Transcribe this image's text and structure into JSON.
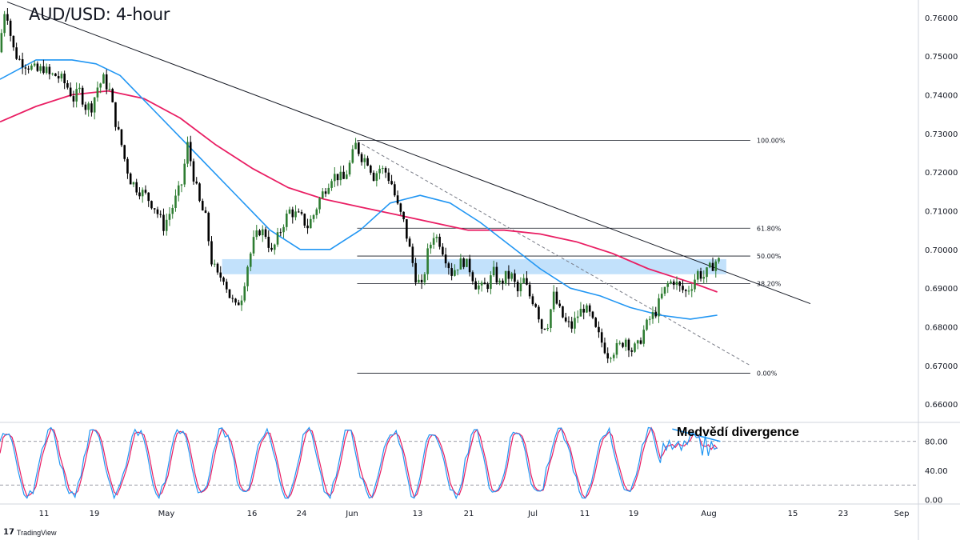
{
  "title": "AUD/USD: 4-hour",
  "branding": "TradingView",
  "chart_data": {
    "type": "candlestick",
    "title": "AUD/USD: 4-hour",
    "price_axis": {
      "ticks": [
        0.76,
        0.75,
        0.74,
        0.73,
        0.72,
        0.71,
        0.7,
        0.69,
        0.68,
        0.67,
        0.66
      ],
      "tick_labels": [
        "0.76000",
        "0.75000",
        "0.74000",
        "0.73000",
        "0.72000",
        "0.71000",
        "0.70000",
        "0.69000",
        "0.68000",
        "0.67000",
        "0.66000"
      ],
      "range": [
        0.6555,
        0.7645
      ]
    },
    "time_axis": {
      "tick_labels": [
        "11",
        "19",
        "May",
        "16",
        "24",
        "Jun",
        "13",
        "21",
        "Jul",
        "11",
        "19",
        "Aug",
        "15",
        "23",
        "Sep"
      ],
      "range_days": [
        0,
        153
      ]
    },
    "price_series": [
      [
        0,
        0.751
      ],
      [
        0.6,
        0.757
      ],
      [
        1.2,
        0.764
      ],
      [
        1.8,
        0.757
      ],
      [
        2.6,
        0.751
      ],
      [
        3.5,
        0.749
      ],
      [
        4.5,
        0.748
      ],
      [
        5.5,
        0.747
      ],
      [
        6.5,
        0.746
      ],
      [
        7.5,
        0.747
      ],
      [
        8.5,
        0.745
      ],
      [
        9.5,
        0.745
      ],
      [
        10.5,
        0.744
      ],
      [
        11.5,
        0.742
      ],
      [
        12.5,
        0.739
      ],
      [
        13.5,
        0.741
      ],
      [
        14.5,
        0.737
      ],
      [
        15.5,
        0.737
      ],
      [
        16.5,
        0.742
      ],
      [
        17.5,
        0.744
      ],
      [
        18.5,
        0.741
      ],
      [
        19.5,
        0.733
      ],
      [
        20.5,
        0.727
      ],
      [
        21.2,
        0.722
      ],
      [
        22,
        0.718
      ],
      [
        23,
        0.716
      ],
      [
        24.5,
        0.714
      ],
      [
        26,
        0.711
      ],
      [
        27.5,
        0.706
      ],
      [
        29,
        0.711
      ],
      [
        30.5,
        0.717
      ],
      [
        31.5,
        0.727
      ],
      [
        32.5,
        0.719
      ],
      [
        33.5,
        0.712
      ],
      [
        34.5,
        0.708
      ],
      [
        35.5,
        0.697
      ],
      [
        36.5,
        0.693
      ],
      [
        37.5,
        0.693
      ],
      [
        38.5,
        0.688
      ],
      [
        39.5,
        0.685
      ],
      [
        40.5,
        0.688
      ],
      [
        41.5,
        0.696
      ],
      [
        42.5,
        0.702
      ],
      [
        43.5,
        0.705
      ],
      [
        44.5,
        0.704
      ],
      [
        45.5,
        0.699
      ],
      [
        46.5,
        0.703
      ],
      [
        47.5,
        0.707
      ],
      [
        48.5,
        0.71
      ],
      [
        49.5,
        0.709
      ],
      [
        50.5,
        0.708
      ],
      [
        51.5,
        0.706
      ],
      [
        52.5,
        0.709
      ],
      [
        53.5,
        0.713
      ],
      [
        54.5,
        0.716
      ],
      [
        55.5,
        0.719
      ],
      [
        56.5,
        0.719
      ],
      [
        57.5,
        0.718
      ],
      [
        58.5,
        0.722
      ],
      [
        59.5,
        0.727
      ],
      [
        60.5,
        0.724
      ],
      [
        61.5,
        0.723
      ],
      [
        62.5,
        0.719
      ],
      [
        63.5,
        0.721
      ],
      [
        64.5,
        0.72
      ],
      [
        65.5,
        0.717
      ],
      [
        66.5,
        0.711
      ],
      [
        67.5,
        0.707
      ],
      [
        68.5,
        0.7
      ],
      [
        69.5,
        0.693
      ],
      [
        70.5,
        0.69
      ],
      [
        71.5,
        0.699
      ],
      [
        72.5,
        0.704
      ],
      [
        73.5,
        0.702
      ],
      [
        74.5,
        0.698
      ],
      [
        75.5,
        0.694
      ],
      [
        76.5,
        0.696
      ],
      [
        77.5,
        0.697
      ],
      [
        78.5,
        0.695
      ],
      [
        79.5,
        0.691
      ],
      [
        80.5,
        0.69
      ],
      [
        81.5,
        0.691
      ],
      [
        82.5,
        0.694
      ],
      [
        83.5,
        0.691
      ],
      [
        84.5,
        0.693
      ],
      [
        85.5,
        0.693
      ],
      [
        86.5,
        0.689
      ],
      [
        87.5,
        0.692
      ],
      [
        88.5,
        0.688
      ],
      [
        89.5,
        0.686
      ],
      [
        90.5,
        0.68
      ],
      [
        91.5,
        0.681
      ],
      [
        92.5,
        0.688
      ],
      [
        93.5,
        0.684
      ],
      [
        94.5,
        0.681
      ],
      [
        95.5,
        0.68
      ],
      [
        96.5,
        0.683
      ],
      [
        97.5,
        0.685
      ],
      [
        98.5,
        0.683
      ],
      [
        99.5,
        0.679
      ],
      [
        100.5,
        0.676
      ],
      [
        101.5,
        0.673
      ],
      [
        102.5,
        0.674
      ],
      [
        103.5,
        0.675
      ],
      [
        104.5,
        0.677
      ],
      [
        105.5,
        0.674
      ],
      [
        106.5,
        0.675
      ],
      [
        107.5,
        0.679
      ],
      [
        108.5,
        0.682
      ],
      [
        109.5,
        0.684
      ],
      [
        110.5,
        0.688
      ],
      [
        111.5,
        0.691
      ],
      [
        112.5,
        0.692
      ],
      [
        113.5,
        0.69
      ],
      [
        114.5,
        0.689
      ],
      [
        115.5,
        0.691
      ],
      [
        116.5,
        0.694
      ],
      [
        117.5,
        0.693
      ],
      [
        118.5,
        0.695
      ],
      [
        119.5,
        0.697
      ]
    ],
    "sma_blue": [
      [
        0,
        0.744
      ],
      [
        6,
        0.749
      ],
      [
        12,
        0.749
      ],
      [
        16,
        0.748
      ],
      [
        20,
        0.745
      ],
      [
        25,
        0.737
      ],
      [
        30,
        0.729
      ],
      [
        35,
        0.721
      ],
      [
        40,
        0.713
      ],
      [
        45,
        0.705
      ],
      [
        50,
        0.7
      ],
      [
        55,
        0.7
      ],
      [
        60,
        0.705
      ],
      [
        65,
        0.712
      ],
      [
        70,
        0.714
      ],
      [
        75,
        0.712
      ],
      [
        80,
        0.707
      ],
      [
        85,
        0.701
      ],
      [
        90,
        0.695
      ],
      [
        95,
        0.69
      ],
      [
        100,
        0.688
      ],
      [
        105,
        0.685
      ],
      [
        110,
        0.683
      ],
      [
        115,
        0.682
      ],
      [
        119.5,
        0.683
      ]
    ],
    "sma_pink": [
      [
        0,
        0.733
      ],
      [
        6,
        0.737
      ],
      [
        12,
        0.74
      ],
      [
        18,
        0.741
      ],
      [
        24,
        0.739
      ],
      [
        30,
        0.734
      ],
      [
        36,
        0.727
      ],
      [
        42,
        0.721
      ],
      [
        48,
        0.716
      ],
      [
        54,
        0.713
      ],
      [
        60,
        0.711
      ],
      [
        66,
        0.709
      ],
      [
        72,
        0.707
      ],
      [
        78,
        0.705
      ],
      [
        84,
        0.705
      ],
      [
        90,
        0.704
      ],
      [
        96,
        0.702
      ],
      [
        102,
        0.699
      ],
      [
        108,
        0.695
      ],
      [
        112,
        0.693
      ],
      [
        116,
        0.691
      ],
      [
        119.5,
        0.689
      ]
    ],
    "trendline": {
      "from": [
        1.2,
        0.764
      ],
      "to": [
        135,
        0.686
      ]
    },
    "dashed_trendline": {
      "from": [
        59.5,
        0.728
      ],
      "to": [
        125,
        0.67
      ]
    },
    "support_zone": {
      "x_range": [
        37,
        121
      ],
      "price_range": [
        0.6936,
        0.6975
      ]
    },
    "fibonacci": {
      "x_range": [
        59.5,
        125
      ],
      "levels": [
        {
          "label": "100.00%",
          "price": 0.7282
        },
        {
          "label": "61.80%",
          "price": 0.7055
        },
        {
          "label": "50.00%",
          "price": 0.6983
        },
        {
          "label": "38.20%",
          "price": 0.6912
        },
        {
          "label": "0.00%",
          "price": 0.668
        }
      ]
    },
    "stochastic": {
      "axis_ticks": [
        80,
        40,
        0
      ],
      "tick_labels": [
        "80.00",
        "40.00",
        "0.00"
      ],
      "dashed_levels": [
        80,
        20
      ],
      "range": [
        -5,
        105
      ],
      "divergence_line": {
        "from": [
          112,
          97
        ],
        "to": [
          120,
          80
        ]
      },
      "annotation": "Medvědí divergence"
    },
    "colors": {
      "bull_candle": "#2e7d32",
      "bear_candle": "#000000",
      "sma_blue": "#2196f3",
      "sma_pink": "#e91e63",
      "zone": "#bbdefb",
      "stoch_k": "#2196f3",
      "stoch_d": "#e91e63",
      "trendline": "#131722",
      "grid_dash": "#787b86"
    }
  }
}
